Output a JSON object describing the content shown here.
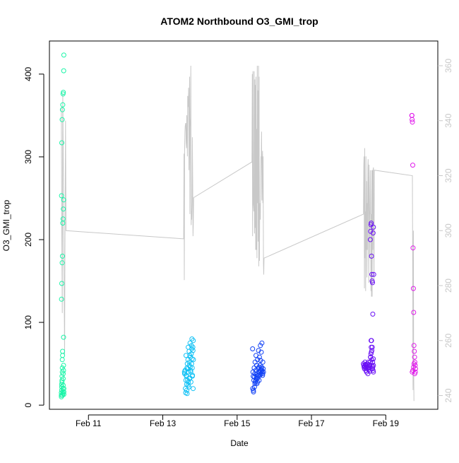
{
  "chart_data": {
    "type": "scatter",
    "title": "ATOM2 Northbound O3_GMI_trop",
    "xlabel": "Date",
    "ylabel": "O3_GMI_trop",
    "xlim": [
      "2018-02-09T22:48",
      "2018-02-20T09:36"
    ],
    "ylim": [
      -5,
      440
    ],
    "y2lim": [
      235,
      369
    ],
    "x_ticks": [
      {
        "date": "2018-02-11",
        "label": "Feb 11"
      },
      {
        "date": "2018-02-13",
        "label": "Feb 13"
      },
      {
        "date": "2018-02-15",
        "label": "Feb 15"
      },
      {
        "date": "2018-02-17",
        "label": "Feb 17"
      },
      {
        "date": "2018-02-19",
        "label": "Feb 19"
      }
    ],
    "y_ticks": [
      0,
      100,
      200,
      300,
      400
    ],
    "y2_ticks": [
      240,
      260,
      280,
      300,
      320,
      340,
      360
    ],
    "grid": false,
    "point_series": [
      {
        "color": "#1AF5A8",
        "x": [
          "2018-02-10T06:30",
          "2018-02-10T06:30",
          "2018-02-10T06:30",
          "2018-02-10T06:42",
          "2018-02-10T06:42",
          "2018-02-10T06:42",
          "2018-02-10T06:54",
          "2018-02-10T06:54",
          "2018-02-10T06:54",
          "2018-02-10T07:06",
          "2018-02-10T07:06",
          "2018-02-10T07:06",
          "2018-02-10T07:18",
          "2018-02-10T07:18",
          "2018-02-10T07:18",
          "2018-02-10T07:30",
          "2018-02-10T07:30",
          "2018-02-10T07:30",
          "2018-02-10T07:42",
          "2018-02-10T07:42",
          "2018-02-10T07:42",
          "2018-02-10T07:54",
          "2018-02-10T07:54",
          "2018-02-10T07:54",
          "2018-02-10T08:06",
          "2018-02-10T08:06",
          "2018-02-10T08:06",
          "2018-02-10T06:36",
          "2018-02-10T06:48",
          "2018-02-10T07:00",
          "2018-02-10T07:12",
          "2018-02-10T07:24",
          "2018-02-10T07:36",
          "2018-02-10T07:48",
          "2018-02-10T08:00",
          "2018-02-10T06:36",
          "2018-02-10T06:48",
          "2018-02-10T07:00",
          "2018-02-10T07:12",
          "2018-02-10T07:24",
          "2018-02-10T07:36",
          "2018-02-10T07:48",
          "2018-02-10T08:00",
          "2018-02-10T08:06"
        ],
        "y": [
          10,
          12,
          15,
          18,
          22,
          25,
          28,
          30,
          35,
          40,
          45,
          55,
          60,
          65,
          12,
          14,
          16,
          20,
          24,
          32,
          38,
          42,
          48,
          82,
          16,
          20,
          13,
          128,
          147,
          172,
          180,
          220,
          225,
          237,
          248,
          253,
          317,
          345,
          357,
          363,
          376,
          378,
          404,
          423
        ]
      },
      {
        "color": "#10C1F5",
        "x": [
          "2018-02-13T14:00",
          "2018-02-13T14:12",
          "2018-02-13T14:24",
          "2018-02-13T14:36",
          "2018-02-13T14:48",
          "2018-02-13T15:00",
          "2018-02-13T15:12",
          "2018-02-13T15:24",
          "2018-02-13T15:36",
          "2018-02-13T15:48",
          "2018-02-13T16:00",
          "2018-02-13T16:12",
          "2018-02-13T16:24",
          "2018-02-13T16:36",
          "2018-02-13T16:48",
          "2018-02-13T17:00",
          "2018-02-13T17:12",
          "2018-02-13T17:24",
          "2018-02-13T17:36",
          "2018-02-13T17:48",
          "2018-02-13T18:00",
          "2018-02-13T18:12",
          "2018-02-13T18:24",
          "2018-02-13T18:36",
          "2018-02-13T18:48",
          "2018-02-13T19:00",
          "2018-02-13T19:12",
          "2018-02-13T19:24",
          "2018-02-13T19:36",
          "2018-02-13T19:48",
          "2018-02-13T14:06",
          "2018-02-13T14:30",
          "2018-02-13T15:06",
          "2018-02-13T15:30",
          "2018-02-13T16:06",
          "2018-02-13T16:30",
          "2018-02-13T17:06",
          "2018-02-13T17:30",
          "2018-02-13T18:06",
          "2018-02-13T18:30",
          "2018-02-13T19:06",
          "2018-02-13T19:30",
          "2018-02-13T14:54",
          "2018-02-13T16:18",
          "2018-02-13T17:42",
          "2018-02-13T18:54",
          "2018-02-13T19:42",
          "2018-02-13T15:42",
          "2018-02-13T17:18",
          "2018-02-13T18:42"
        ],
        "y": [
          40,
          38,
          42,
          20,
          15,
          60,
          35,
          25,
          45,
          50,
          30,
          55,
          70,
          40,
          22,
          65,
          48,
          33,
          75,
          58,
          42,
          28,
          62,
          50,
          80,
          45,
          36,
          70,
          20,
          55,
          38,
          42,
          36,
          18,
          44,
          28,
          52,
          60,
          40,
          72,
          35,
          66,
          30,
          24,
          46,
          56,
          78,
          14,
          32,
          68
        ]
      },
      {
        "color": "#1040F5",
        "x": [
          "2018-02-15T10:00",
          "2018-02-15T10:12",
          "2018-02-15T10:24",
          "2018-02-15T10:36",
          "2018-02-15T10:48",
          "2018-02-15T11:00",
          "2018-02-15T11:12",
          "2018-02-15T11:24",
          "2018-02-15T11:36",
          "2018-02-15T11:48",
          "2018-02-15T12:00",
          "2018-02-15T12:12",
          "2018-02-15T12:24",
          "2018-02-15T12:36",
          "2018-02-15T12:48",
          "2018-02-15T13:00",
          "2018-02-15T13:12",
          "2018-02-15T13:24",
          "2018-02-15T13:36",
          "2018-02-15T13:48",
          "2018-02-15T14:00",
          "2018-02-15T14:12",
          "2018-02-15T14:24",
          "2018-02-15T14:36",
          "2018-02-15T14:48",
          "2018-02-15T15:00",
          "2018-02-15T15:12",
          "2018-02-15T15:24",
          "2018-02-15T15:36",
          "2018-02-15T15:48",
          "2018-02-15T16:00",
          "2018-02-15T16:12",
          "2018-02-15T16:24",
          "2018-02-15T16:36",
          "2018-02-15T16:48",
          "2018-02-15T17:00",
          "2018-02-15T10:30",
          "2018-02-15T11:30",
          "2018-02-15T12:30",
          "2018-02-15T13:30",
          "2018-02-15T14:30",
          "2018-02-15T15:30",
          "2018-02-15T16:30",
          "2018-02-15T11:06",
          "2018-02-15T12:06",
          "2018-02-15T13:06",
          "2018-02-15T14:06",
          "2018-02-15T15:06",
          "2018-02-15T16:06",
          "2018-02-15T10:06"
        ],
        "y": [
          68,
          40,
          35,
          16,
          30,
          45,
          22,
          38,
          52,
          28,
          42,
          60,
          35,
          48,
          26,
          38,
          55,
          33,
          44,
          66,
          40,
          30,
          58,
          36,
          48,
          72,
          42,
          38,
          64,
          46,
          75,
          40,
          36,
          52,
          44,
          40,
          18,
          26,
          32,
          36,
          40,
          44,
          38,
          34,
          30,
          28,
          46,
          54,
          42,
          20
        ]
      },
      {
        "color": "#6A10F5",
        "x": [
          "2018-02-18T09:36",
          "2018-02-18T09:48",
          "2018-02-18T10:00",
          "2018-02-18T10:12",
          "2018-02-18T10:24",
          "2018-02-18T10:36",
          "2018-02-18T10:48",
          "2018-02-18T11:00",
          "2018-02-18T11:12",
          "2018-02-18T11:24",
          "2018-02-18T11:36",
          "2018-02-18T11:48",
          "2018-02-18T12:00",
          "2018-02-18T12:12",
          "2018-02-18T12:24",
          "2018-02-18T12:36",
          "2018-02-18T12:48",
          "2018-02-18T13:00",
          "2018-02-18T13:12",
          "2018-02-18T13:24",
          "2018-02-18T13:36",
          "2018-02-18T13:48",
          "2018-02-18T14:00",
          "2018-02-18T14:12",
          "2018-02-18T14:24",
          "2018-02-18T14:36",
          "2018-02-18T14:48",
          "2018-02-18T15:00",
          "2018-02-18T15:12",
          "2018-02-18T15:24",
          "2018-02-18T15:36",
          "2018-02-18T15:48",
          "2018-02-18T16:00",
          "2018-02-18T14:00",
          "2018-02-18T14:12",
          "2018-02-18T14:24",
          "2018-02-18T14:36",
          "2018-02-18T14:48",
          "2018-02-18T15:00",
          "2018-02-18T15:12",
          "2018-02-18T15:24",
          "2018-02-18T15:36",
          "2018-02-18T15:48",
          "2018-02-18T16:00",
          "2018-02-18T16:12",
          "2018-02-18T14:30",
          "2018-02-18T15:00",
          "2018-02-18T15:30",
          "2018-02-18T16:00",
          "2018-02-18T14:06",
          "2018-02-18T14:42",
          "2018-02-18T15:18",
          "2018-02-18T15:54"
        ],
        "y": [
          50,
          48,
          46,
          44,
          47,
          52,
          49,
          45,
          42,
          48,
          40,
          46,
          50,
          44,
          38,
          47,
          52,
          43,
          49,
          45,
          41,
          48,
          52,
          58,
          62,
          70,
          78,
          55,
          48,
          44,
          46,
          42,
          40,
          200,
          210,
          218,
          220,
          180,
          158,
          150,
          148,
          110,
          208,
          215,
          158,
          78,
          66,
          52,
          48,
          58,
          64,
          70,
          56
        ]
      },
      {
        "color": "#E01AEB",
        "x": [
          "2018-02-19T16:48",
          "2018-02-19T17:00",
          "2018-02-19T17:12",
          "2018-02-19T17:24",
          "2018-02-19T17:36",
          "2018-02-19T17:48",
          "2018-02-19T18:00",
          "2018-02-19T18:12",
          "2018-02-19T18:24",
          "2018-02-19T18:36",
          "2018-02-19T18:48",
          "2018-02-19T19:00",
          "2018-02-19T19:12",
          "2018-02-19T17:06",
          "2018-02-19T17:30",
          "2018-02-19T17:54",
          "2018-02-19T18:18",
          "2018-02-19T18:42",
          "2018-02-19T19:06",
          "2018-02-19T16:54"
        ],
        "y": [
          350,
          345,
          342,
          290,
          190,
          141,
          112,
          72,
          65,
          58,
          52,
          48,
          44,
          40,
          42,
          46,
          50,
          38,
          40,
          350
        ]
      }
    ],
    "line_series": {
      "color": "#C8C8C8",
      "axis": "right",
      "x": [
        "2018-02-10T06:30",
        "2018-02-10T06:48",
        "2018-02-10T07:06",
        "2018-02-10T07:24",
        "2018-02-10T07:42",
        "2018-02-10T08:00",
        "2018-02-10T08:18",
        "2018-02-10T08:36",
        "2018-02-10T08:54",
        "2018-02-10T09:12",
        "2018-02-10T09:30",
        "2018-02-13T13:30",
        "2018-02-13T13:42",
        "2018-02-13T13:54",
        "2018-02-13T14:06",
        "2018-02-13T14:18",
        "2018-02-13T14:30",
        "2018-02-13T14:42",
        "2018-02-13T14:54",
        "2018-02-13T15:06",
        "2018-02-13T15:18",
        "2018-02-13T15:30",
        "2018-02-13T15:42",
        "2018-02-13T15:54",
        "2018-02-13T16:06",
        "2018-02-13T16:18",
        "2018-02-13T16:30",
        "2018-02-13T16:42",
        "2018-02-13T16:54",
        "2018-02-13T17:06",
        "2018-02-13T17:18",
        "2018-02-13T17:30",
        "2018-02-13T17:42",
        "2018-02-13T17:54",
        "2018-02-13T18:06",
        "2018-02-13T18:18",
        "2018-02-13T18:30",
        "2018-02-13T18:42",
        "2018-02-13T18:54",
        "2018-02-13T19:06",
        "2018-02-13T19:18",
        "2018-02-13T19:30",
        "2018-02-13T19:42",
        "2018-02-13T19:54",
        "2018-02-15T09:36",
        "2018-02-15T09:48",
        "2018-02-15T10:00",
        "2018-02-15T10:12",
        "2018-02-15T10:24",
        "2018-02-15T10:36",
        "2018-02-15T10:48",
        "2018-02-15T11:00",
        "2018-02-15T11:12",
        "2018-02-15T11:24",
        "2018-02-15T11:36",
        "2018-02-15T11:48",
        "2018-02-15T12:00",
        "2018-02-15T12:12",
        "2018-02-15T12:24",
        "2018-02-15T12:36",
        "2018-02-15T12:48",
        "2018-02-15T13:00",
        "2018-02-15T13:12",
        "2018-02-15T13:24",
        "2018-02-15T13:36",
        "2018-02-15T13:48",
        "2018-02-15T14:00",
        "2018-02-15T14:12",
        "2018-02-15T14:24",
        "2018-02-15T14:36",
        "2018-02-15T14:48",
        "2018-02-15T15:00",
        "2018-02-15T15:12",
        "2018-02-15T15:24",
        "2018-02-15T15:36",
        "2018-02-15T15:48",
        "2018-02-15T16:00",
        "2018-02-15T16:12",
        "2018-02-15T16:24",
        "2018-02-15T16:36",
        "2018-02-15T16:48",
        "2018-02-15T17:00",
        "2018-02-15T17:12",
        "2018-02-15T17:24",
        "2018-02-18T09:36",
        "2018-02-18T09:48",
        "2018-02-18T10:00",
        "2018-02-18T10:12",
        "2018-02-18T10:24",
        "2018-02-18T10:36",
        "2018-02-18T10:48",
        "2018-02-18T11:00",
        "2018-02-18T11:12",
        "2018-02-18T11:24",
        "2018-02-18T11:36",
        "2018-02-18T11:48",
        "2018-02-18T12:00",
        "2018-02-18T12:12",
        "2018-02-18T12:24",
        "2018-02-18T12:36",
        "2018-02-18T12:48",
        "2018-02-18T13:00",
        "2018-02-18T13:12",
        "2018-02-18T13:24",
        "2018-02-18T13:36",
        "2018-02-18T13:48",
        "2018-02-18T14:00",
        "2018-02-18T14:12",
        "2018-02-18T14:24",
        "2018-02-18T14:36",
        "2018-02-18T14:48",
        "2018-02-18T15:00",
        "2018-02-18T15:12",
        "2018-02-18T15:24",
        "2018-02-18T15:36",
        "2018-02-18T15:48",
        "2018-02-18T16:00",
        "2018-02-18T16:12",
        "2018-02-18T16:24",
        "2018-02-18T16:36",
        "2018-02-19T17:12",
        "2018-02-19T17:24",
        "2018-02-19T17:36",
        "2018-02-19T17:48",
        "2018-02-19T18:00",
        "2018-02-19T18:12"
      ],
      "y": [
        345,
        300,
        270,
        350,
        330,
        300,
        279,
        255,
        300,
        340,
        300,
        297,
        328,
        282,
        329,
        336,
        338,
        339,
        339,
        332,
        330,
        342,
        339,
        327,
        349,
        348,
        345,
        352,
        322,
        343,
        356,
        306,
        338,
        341,
        360,
        302,
        307,
        304,
        311,
        334,
        318,
        298,
        302,
        312,
        325,
        357,
        298,
        358,
        310,
        309,
        307,
        358,
        299,
        355,
        301,
        353,
        293,
        356,
        293,
        337,
        290,
        360,
        310,
        351,
        296,
        360,
        287,
        356,
        289,
        308,
        310,
        304,
        320,
        327,
        326,
        336,
        311,
        323,
        329,
        310,
        327,
        288,
        284,
        290,
        306,
        324,
        327,
        279,
        330,
        290,
        307,
        278,
        327,
        293,
        318,
        283,
        310,
        293,
        323,
        326,
        304,
        281,
        324,
        290,
        307,
        306,
        322,
        311,
        278,
        306,
        276,
        322,
        276,
        322,
        293,
        322,
        323,
        296,
        281,
        322,
        320,
        281,
        242,
        300,
        250,
        238
      ]
    }
  }
}
